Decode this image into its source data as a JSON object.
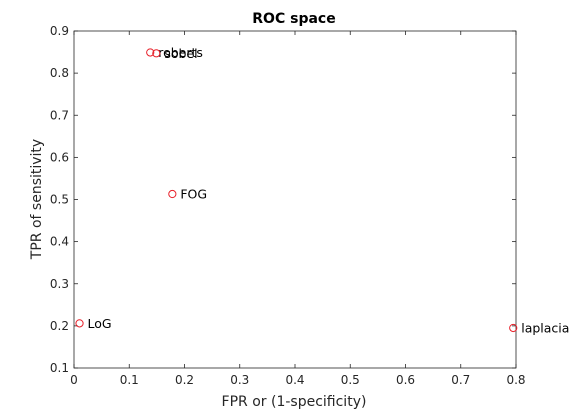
{
  "chart_data": {
    "type": "scatter",
    "title": "ROC space",
    "xlabel": "FPR or (1-specificity)",
    "ylabel": "TPR of sensitivity",
    "xlim": [
      0,
      0.8
    ],
    "ylim": [
      0.1,
      0.9
    ],
    "xticks": [
      "0",
      "0.1",
      "0.2",
      "0.3",
      "0.4",
      "0.5",
      "0.6",
      "0.7",
      "0.8"
    ],
    "yticks": [
      "0.1",
      "0.2",
      "0.3",
      "0.4",
      "0.5",
      "0.6",
      "0.7",
      "0.8",
      "0.9"
    ],
    "grid": false,
    "marker": "open-circle",
    "marker_color": "#e8202a",
    "points": [
      {
        "label": "roberts",
        "x": 0.138,
        "y": 0.849
      },
      {
        "label": "sobel",
        "x": 0.149,
        "y": 0.847
      },
      {
        "label": "FOG",
        "x": 0.178,
        "y": 0.513
      },
      {
        "label": "LoG",
        "x": 0.01,
        "y": 0.206
      },
      {
        "label": "laplacian",
        "x": 0.795,
        "y": 0.195
      }
    ]
  }
}
